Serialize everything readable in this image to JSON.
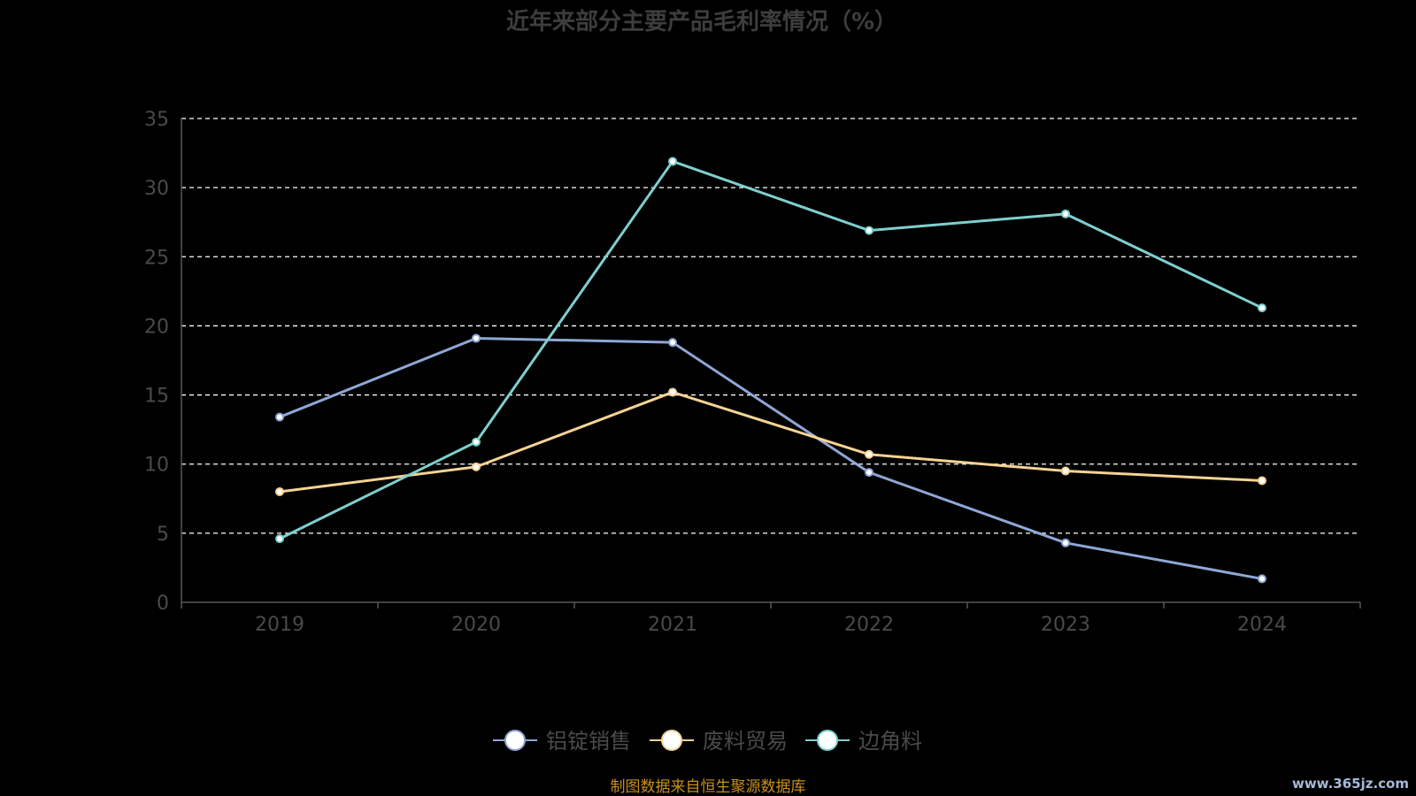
{
  "chart_data": {
    "type": "line",
    "title": "近年来部分主要产品毛利率情况（%）",
    "categories": [
      "2019",
      "2020",
      "2021",
      "2022",
      "2023",
      "2024"
    ],
    "ylim": [
      0,
      35
    ],
    "yticks": [
      0,
      5,
      10,
      15,
      20,
      25,
      30,
      35
    ],
    "grid": true,
    "legend_position": "bottom-center",
    "series": [
      {
        "name": "铝锭销售",
        "color": "#8ea7d6",
        "values": [
          13.4,
          19.1,
          18.8,
          9.4,
          4.3,
          1.7
        ]
      },
      {
        "name": "废料贸易",
        "color": "#f5d393",
        "values": [
          8.0,
          9.8,
          15.2,
          10.7,
          9.5,
          8.8
        ]
      },
      {
        "name": "边角料",
        "color": "#7fcfcf",
        "values": [
          4.6,
          11.6,
          31.9,
          26.9,
          28.1,
          21.3
        ]
      }
    ]
  },
  "colors": {
    "background": "#000000",
    "title": "#3d3d3d",
    "axis_text": "#4a4a4a",
    "grid": "#ffffff",
    "axis_line": "#555555",
    "source": "#c8901c",
    "watermark": "#a6b9d9"
  },
  "source_note": "制图数据来自恒生聚源数据库",
  "watermark": "www.365jz.com"
}
